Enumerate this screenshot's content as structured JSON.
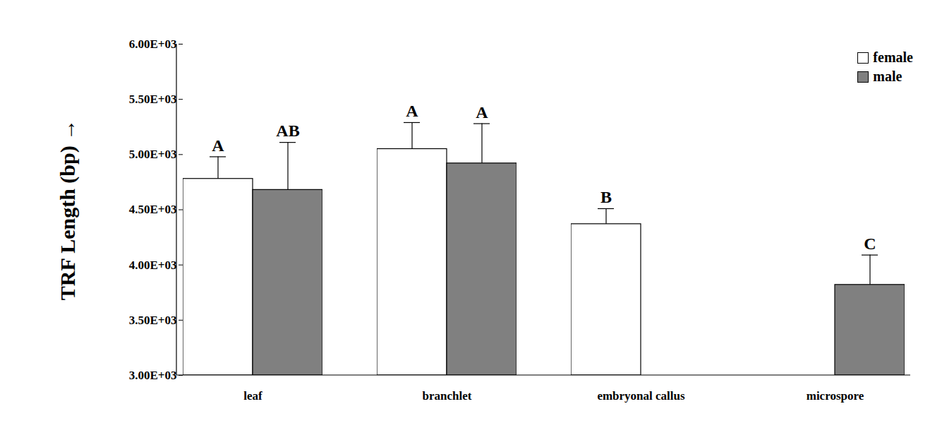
{
  "chart_data": {
    "type": "bar",
    "y_label": "TRF Length (bp)",
    "categories": [
      "leaf",
      "branchlet",
      "embryonal callus",
      "microspore"
    ],
    "series": [
      {
        "name": "female",
        "color": "#ffffff",
        "values": [
          4780,
          5050,
          4370,
          null
        ],
        "errors": [
          200,
          240,
          140,
          null
        ],
        "letters": [
          "A",
          "A",
          "B",
          null
        ]
      },
      {
        "name": "male",
        "color": "#808080",
        "values": [
          4680,
          4920,
          null,
          3820
        ],
        "errors": [
          430,
          360,
          null,
          270
        ],
        "letters": [
          "AB",
          "A",
          null,
          "C"
        ]
      }
    ],
    "ylim": [
      3000,
      6000
    ],
    "yticks": [
      {
        "value": 3000,
        "label": "3.00E+03"
      },
      {
        "value": 3500,
        "label": "3.50E+03"
      },
      {
        "value": 4000,
        "label": "4.00E+03"
      },
      {
        "value": 4500,
        "label": "4.50E+03"
      },
      {
        "value": 5000,
        "label": "5.00E+03"
      },
      {
        "value": 5500,
        "label": "5.50E+03"
      },
      {
        "value": 6000,
        "label": "6.00E+03"
      }
    ],
    "grid": false,
    "legend": "top-right"
  }
}
